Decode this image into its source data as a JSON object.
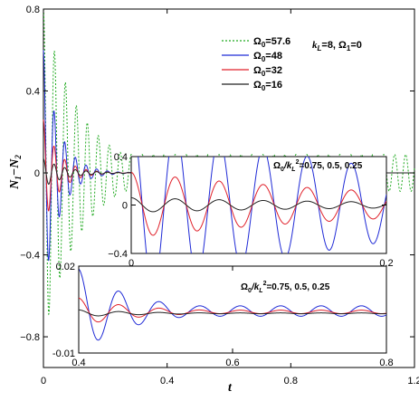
{
  "chart_data": [
    {
      "id": "main",
      "type": "line",
      "xlabel": "t",
      "ylabel": "N1 − N2",
      "ylabel_main": "N",
      "ylabel_sub1": "1",
      "ylabel_minus": "−N",
      "ylabel_sub2": "2",
      "xlim": [
        0,
        1.2
      ],
      "ylim": [
        -0.95,
        0.8
      ],
      "xticks": [
        0,
        0.4,
        0.8,
        1.2
      ],
      "xtick_labels": [
        "0",
        "0.4",
        "0.8",
        "1.2"
      ],
      "yticks": [
        -0.8,
        -0.4,
        0,
        0.4,
        0.8
      ],
      "ytick_labels": [
        "−0.8",
        "−0.4",
        "0",
        "0.4",
        "0.8"
      ],
      "annotation": "k_L=8, Ω_1=0",
      "annotation_parts": {
        "k": "k",
        "k_sub": "L",
        "k_eq": "=8,  Ω",
        "om_sub": "1",
        "om_eq": "=0"
      },
      "legend_position": "top-right",
      "series": [
        {
          "name": "Ω0=57.6",
          "label_main": "Ω",
          "label_sub": "0",
          "label_val": "=57.6",
          "color": "#22aa22",
          "dash": "2,2",
          "amplitude": 0.8,
          "period": 0.0355,
          "decay": 0.12,
          "tail_amplitude": 0.09
        },
        {
          "name": "Ω0=48",
          "label_main": "Ω",
          "label_sub": "0",
          "label_val": "=48",
          "color": "#1f2ad6",
          "dash": "",
          "amplitude": 0.6,
          "period": 0.0345,
          "decay": 0.05,
          "tail_amplitude": 0.0
        },
        {
          "name": "Ω0=32",
          "label_main": "Ω",
          "label_sub": "0",
          "label_val": "=32",
          "color": "#e0202a",
          "dash": "",
          "amplitude": 0.26,
          "period": 0.0345,
          "decay": 0.05,
          "tail_amplitude": 0.0
        },
        {
          "name": "Ω0=16",
          "label_main": "Ω",
          "label_sub": "0",
          "label_val": "=16",
          "color": "#222222",
          "dash": "",
          "amplitude": 0.07,
          "period": 0.0345,
          "decay": 0.07,
          "tail_amplitude": 0.0
        }
      ]
    },
    {
      "id": "inset1",
      "type": "line",
      "xlim": [
        0,
        0.2
      ],
      "ylim": [
        -0.4,
        0.4
      ],
      "xticks": [
        0,
        0.2
      ],
      "xtick_labels": [
        "0",
        "0.2"
      ],
      "yticks": [
        -0.4,
        0,
        0.4
      ],
      "ytick_labels": [
        "−0.4",
        "0",
        "0.4"
      ],
      "annotation": "Ω0/kL²=0.75, 0.5, 0.25",
      "annotation_parts": {
        "om": "Ω",
        "om_sub": "0",
        "slash": "/k",
        "k_sub": "L",
        "k_sup": "2",
        "vals": "=0.75, 0.5, 0.25"
      },
      "series": [
        {
          "name": "0.75",
          "color": "#1f2ad6",
          "amplitude": 0.75,
          "period": 0.0345,
          "decay": 4.5
        },
        {
          "name": "0.5",
          "color": "#e0202a",
          "amplitude": 0.27,
          "period": 0.0345,
          "decay": 4.5
        },
        {
          "name": "0.25",
          "color": "#222222",
          "amplitude": 0.06,
          "period": 0.0345,
          "decay": 4.5
        }
      ]
    },
    {
      "id": "inset2",
      "type": "line",
      "xlim": [
        0.4,
        0.8
      ],
      "ylim": [
        -0.01,
        0.02
      ],
      "xticks": [
        0.4,
        0.6,
        0.8
      ],
      "xtick_labels": [
        "0.4",
        "0.6",
        "0.8"
      ],
      "yticks": [
        -0.01,
        0.02
      ],
      "ytick_labels": [
        "-0.01",
        "0.02"
      ],
      "annotation": "Ω0/kL²=0.75, 0.5, 0.25",
      "annotation_parts": {
        "om": "Ω",
        "om_sub": "0",
        "slash": "/k",
        "k_sub": "L",
        "k_sup": "2",
        "vals": "=0.75, 0.5, 0.25"
      },
      "series": [
        {
          "name": "0.75",
          "color": "#1f2ad6",
          "center": 0.0045,
          "amplitude": 0.0145,
          "period": 0.0525,
          "decay": 0.07,
          "floor": 0.0018
        },
        {
          "name": "0.5",
          "color": "#e0202a",
          "center": 0.0042,
          "amplitude": 0.0048,
          "period": 0.0525,
          "decay": 0.08,
          "floor": 0.0006
        },
        {
          "name": "0.25",
          "color": "#222222",
          "center": 0.0037,
          "amplitude": 0.0012,
          "period": 0.0525,
          "decay": 0.08,
          "floor": 0.00015
        }
      ]
    }
  ]
}
